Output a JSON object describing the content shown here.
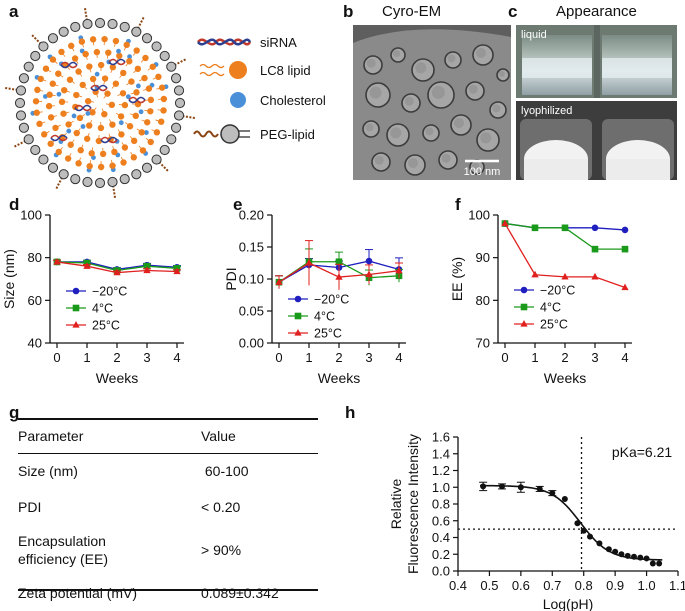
{
  "panels": {
    "a": "a",
    "b": "b",
    "c": "c",
    "d": "d",
    "e": "e",
    "f": "f",
    "g": "g",
    "h": "h"
  },
  "schematic": {
    "legend": [
      "siRNA",
      "LC8 lipid",
      "Cholesterol",
      "PEG-lipid"
    ],
    "colors": {
      "lipid": "#ee7f1e",
      "cholesterol": "#4a90d9",
      "peg_tail": "#8b4513",
      "siRNA_a": "#c0392b",
      "siRNA_b": "#2c3e8f",
      "head": "#bdbdbd"
    }
  },
  "cryo": {
    "title": "Cyro-EM",
    "scale_label": "100 nm"
  },
  "appearance": {
    "title": "Appearance",
    "top_label": "liquid",
    "bottom_label": "lyophilized"
  },
  "series_legend": [
    "−20°C",
    "4°C",
    "25°C"
  ],
  "series_colors": [
    "#1f1fbf",
    "#1a9a1a",
    "#e0201f"
  ],
  "chart_data": [
    {
      "type": "line",
      "panel": "d",
      "x": [
        0,
        1,
        2,
        3,
        4
      ],
      "xlabel": "Weeks",
      "ylabel": "Size (nm)",
      "ylim": [
        40,
        100
      ],
      "yticks": [
        40,
        60,
        80,
        100
      ],
      "xticks": [
        0,
        1,
        2,
        3,
        4
      ],
      "series": [
        {
          "name": "−20°C",
          "values": [
            78,
            78,
            74.5,
            76.5,
            75.5
          ],
          "err": [
            0.8,
            0.8,
            0.8,
            0.8,
            0.8
          ]
        },
        {
          "name": "4°C",
          "values": [
            78,
            77.5,
            74,
            76,
            75
          ],
          "err": [
            0.8,
            0.8,
            0.8,
            0.8,
            0.8
          ]
        },
        {
          "name": "25°C",
          "values": [
            78,
            76,
            73,
            74,
            73.5
          ],
          "err": [
            0.8,
            0.8,
            0.8,
            0.8,
            0.8
          ]
        }
      ]
    },
    {
      "type": "line",
      "panel": "e",
      "x": [
        0,
        1,
        2,
        3,
        4
      ],
      "xlabel": "Weeks",
      "ylabel": "PDI",
      "ylim": [
        0,
        0.2
      ],
      "yticks": [
        0.0,
        0.05,
        0.1,
        0.15,
        0.2
      ],
      "xticks": [
        0,
        1,
        2,
        3,
        4
      ],
      "series": [
        {
          "name": "−20°C",
          "values": [
            0.095,
            0.122,
            0.118,
            0.128,
            0.115
          ],
          "err": [
            0.01,
            0.01,
            0.01,
            0.018,
            0.018
          ]
        },
        {
          "name": "4°C",
          "values": [
            0.095,
            0.127,
            0.127,
            0.102,
            0.105
          ],
          "err": [
            0.01,
            0.02,
            0.015,
            0.012,
            0.01
          ]
        },
        {
          "name": "25°C",
          "values": [
            0.095,
            0.125,
            0.103,
            0.107,
            0.113
          ],
          "err": [
            0.01,
            0.035,
            0.02,
            0.015,
            0.012
          ]
        }
      ]
    },
    {
      "type": "line",
      "panel": "f",
      "x": [
        0,
        1,
        2,
        3,
        4
      ],
      "xlabel": "Weeks",
      "ylabel": "EE (%)",
      "ylim": [
        70,
        100
      ],
      "yticks": [
        70,
        80,
        90,
        100
      ],
      "xticks": [
        0,
        1,
        2,
        3,
        4
      ],
      "series": [
        {
          "name": "−20°C",
          "values": [
            98,
            97,
            97,
            97,
            96.5
          ]
        },
        {
          "name": "4°C",
          "values": [
            98,
            97,
            97,
            92,
            92
          ]
        },
        {
          "name": "25°C",
          "values": [
            98,
            86,
            85.5,
            85.5,
            83
          ]
        }
      ]
    },
    {
      "type": "table",
      "panel": "g",
      "columns": [
        "Parameter",
        "Value"
      ],
      "rows": [
        [
          "Size (nm)",
          " 60-100"
        ],
        [
          "PDI",
          "< 0.20"
        ],
        [
          "Encapsulation\nefficiency (EE)",
          "> 90%"
        ],
        [
          "Zeta potential (mV)",
          "0.089±0.342"
        ]
      ]
    },
    {
      "type": "scatter",
      "panel": "h",
      "xlabel": "Log(pH)",
      "ylabel_line1": "Relative",
      "ylabel_line2": "Fluorescence Intensity",
      "xlim": [
        0.4,
        1.1
      ],
      "ylim": [
        0,
        1.6
      ],
      "xticks": [
        0.4,
        0.5,
        0.6,
        0.7,
        0.8,
        0.9,
        1.0,
        1.1
      ],
      "yticks": [
        0.0,
        0.2,
        0.4,
        0.6,
        0.8,
        1.0,
        1.2,
        1.4,
        1.6
      ],
      "annotation": "pKa=6.21",
      "vline_x": 0.793,
      "hline_y": 0.5,
      "points": [
        {
          "x": 0.48,
          "y": 1.01,
          "err": 0.05
        },
        {
          "x": 0.54,
          "y": 1.01,
          "err": 0.03
        },
        {
          "x": 0.6,
          "y": 1.0,
          "err": 0.06
        },
        {
          "x": 0.66,
          "y": 0.98,
          "err": 0.03
        },
        {
          "x": 0.7,
          "y": 0.93,
          "err": 0.03
        },
        {
          "x": 0.74,
          "y": 0.86,
          "err": 0
        },
        {
          "x": 0.78,
          "y": 0.57,
          "err": 0
        },
        {
          "x": 0.8,
          "y": 0.48,
          "err": 0
        },
        {
          "x": 0.82,
          "y": 0.41,
          "err": 0
        },
        {
          "x": 0.85,
          "y": 0.33,
          "err": 0
        },
        {
          "x": 0.88,
          "y": 0.26,
          "err": 0
        },
        {
          "x": 0.9,
          "y": 0.23,
          "err": 0
        },
        {
          "x": 0.92,
          "y": 0.2,
          "err": 0
        },
        {
          "x": 0.94,
          "y": 0.18,
          "err": 0
        },
        {
          "x": 0.96,
          "y": 0.17,
          "err": 0
        },
        {
          "x": 0.98,
          "y": 0.16,
          "err": 0
        },
        {
          "x": 1.0,
          "y": 0.15,
          "err": 0
        },
        {
          "x": 1.02,
          "y": 0.09,
          "err": 0
        },
        {
          "x": 1.04,
          "y": 0.09,
          "err": 0
        }
      ],
      "fit": {
        "top": 1.02,
        "bottom": 0.13,
        "x50": 0.79,
        "slope": 22
      }
    }
  ]
}
